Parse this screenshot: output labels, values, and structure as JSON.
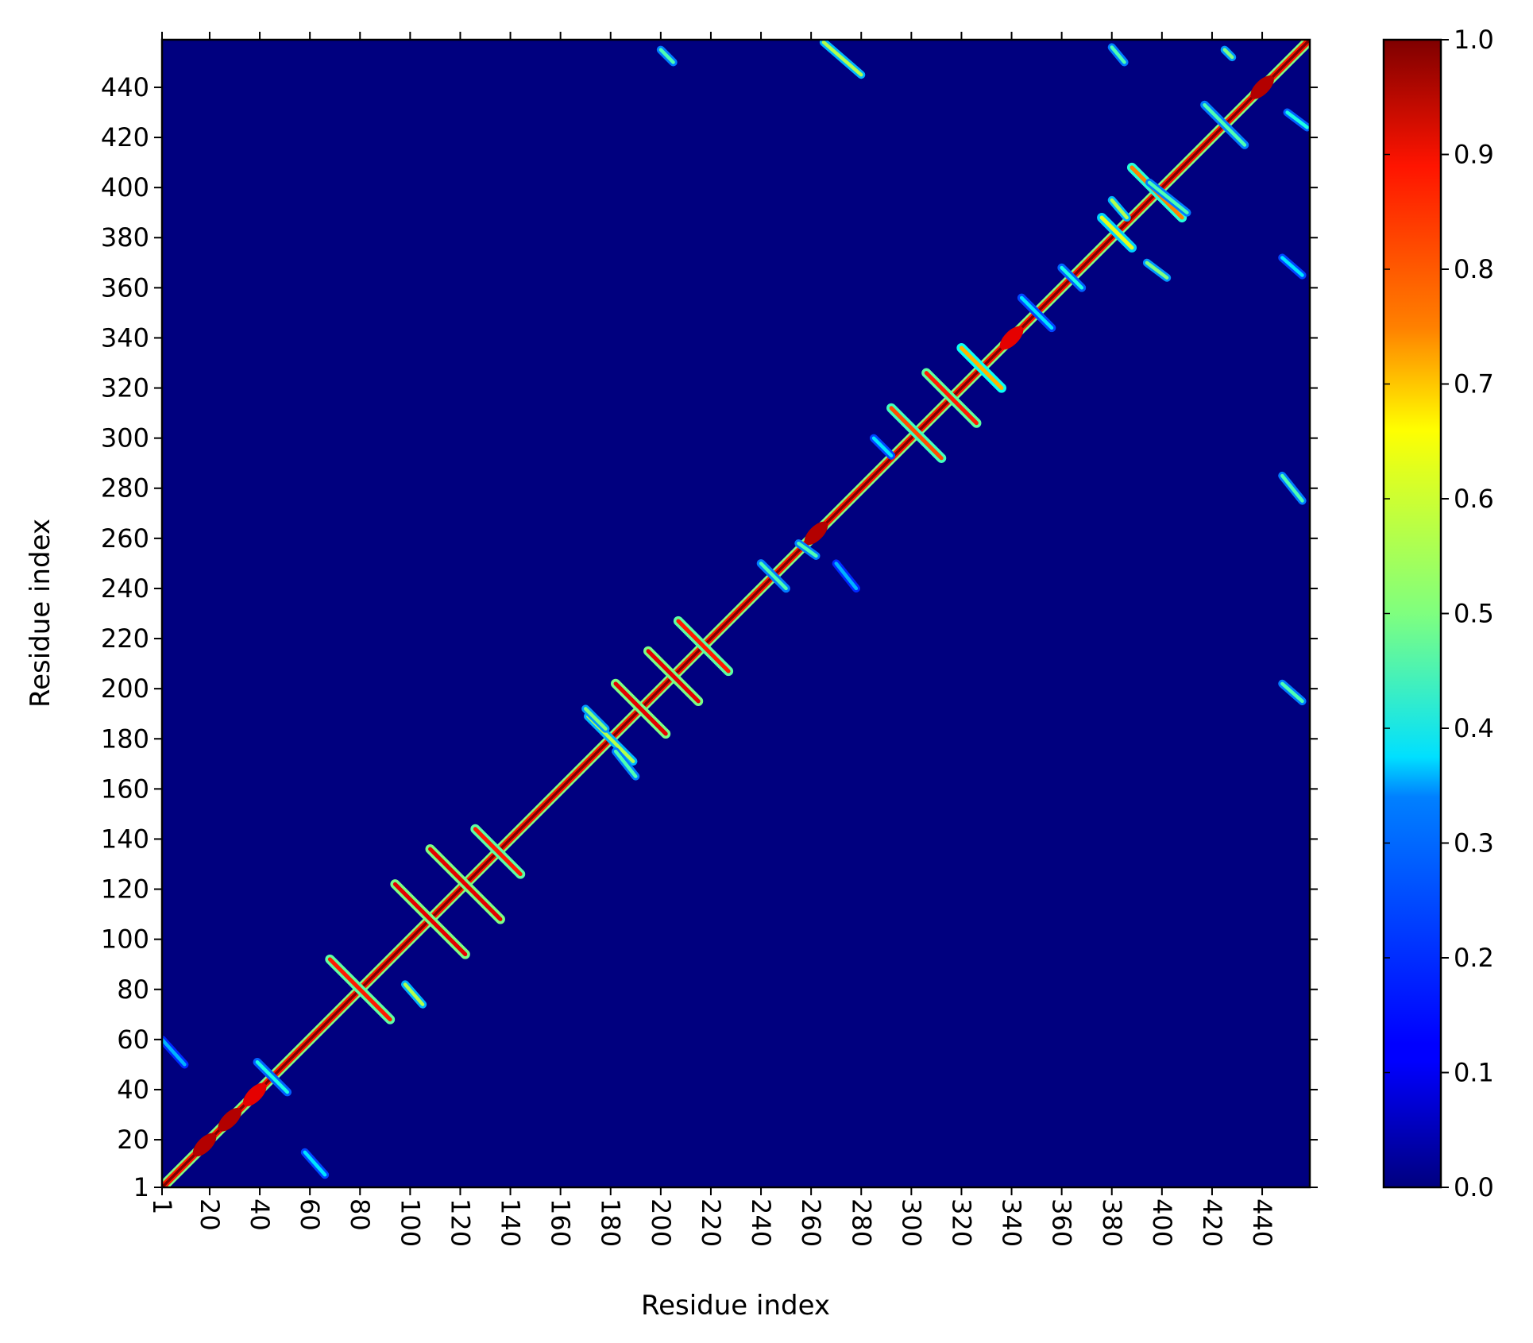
{
  "chart_data": {
    "type": "heatmap",
    "title": "",
    "xlabel": "Residue index",
    "ylabel": "Residue index",
    "xlim": [
      1,
      459
    ],
    "ylim": [
      1,
      459
    ],
    "x_ticks": [
      "1",
      "20",
      "40",
      "60",
      "80",
      "100",
      "120",
      "140",
      "160",
      "180",
      "200",
      "220",
      "240",
      "260",
      "280",
      "300",
      "320",
      "340",
      "360",
      "380",
      "400",
      "420",
      "440"
    ],
    "y_ticks": [
      "1",
      "20",
      "40",
      "60",
      "80",
      "100",
      "120",
      "140",
      "160",
      "180",
      "200",
      "220",
      "240",
      "260",
      "280",
      "300",
      "320",
      "340",
      "360",
      "380",
      "400",
      "420",
      "440"
    ],
    "x_tick_values": [
      1,
      20,
      40,
      60,
      80,
      100,
      120,
      140,
      160,
      180,
      200,
      220,
      240,
      260,
      280,
      300,
      320,
      340,
      360,
      380,
      400,
      420,
      440
    ],
    "y_tick_values": [
      1,
      20,
      40,
      60,
      80,
      100,
      120,
      140,
      160,
      180,
      200,
      220,
      240,
      260,
      280,
      300,
      320,
      340,
      360,
      380,
      400,
      420,
      440
    ],
    "colormap": "jet",
    "colorbar": {
      "range": [
        0.0,
        1.0
      ],
      "ticks": [
        "0.0",
        "0.1",
        "0.2",
        "0.3",
        "0.4",
        "0.5",
        "0.6",
        "0.7",
        "0.8",
        "0.9",
        "1.0"
      ],
      "tick_values": [
        0.0,
        0.1,
        0.2,
        0.3,
        0.4,
        0.5,
        0.6,
        0.7,
        0.8,
        0.9,
        1.0
      ]
    },
    "diagonal_value": 1.0,
    "background_value": 0.03,
    "features": [
      {
        "kind": "diagonal-band",
        "from": 1,
        "to": 459,
        "value": 1.0
      },
      {
        "kind": "helix-blob",
        "center": [
          18,
          18
        ],
        "value": 0.95
      },
      {
        "kind": "helix-blob",
        "center": [
          28,
          28
        ],
        "value": 0.95
      },
      {
        "kind": "helix-blob",
        "center": [
          38,
          38
        ],
        "value": 0.9
      },
      {
        "kind": "helix-blob",
        "center": [
          262,
          262
        ],
        "value": 0.95
      },
      {
        "kind": "helix-blob",
        "center": [
          340,
          340
        ],
        "value": 0.9
      },
      {
        "kind": "helix-blob",
        "center": [
          440,
          440
        ],
        "value": 0.95
      },
      {
        "kind": "strand-cross",
        "center": [
          80,
          80
        ],
        "length": 12,
        "value": 0.85
      },
      {
        "kind": "strand-cross",
        "center": [
          108,
          108
        ],
        "length": 14,
        "value": 0.9
      },
      {
        "kind": "strand-cross",
        "center": [
          122,
          122
        ],
        "length": 14,
        "value": 0.9
      },
      {
        "kind": "strand-cross",
        "center": [
          135,
          135
        ],
        "length": 9,
        "value": 0.85
      },
      {
        "kind": "strand-cross",
        "center": [
          192,
          192
        ],
        "length": 10,
        "value": 0.9
      },
      {
        "kind": "strand-cross",
        "center": [
          205,
          205
        ],
        "length": 10,
        "value": 0.9
      },
      {
        "kind": "strand-cross",
        "center": [
          217,
          217
        ],
        "length": 10,
        "value": 0.85
      },
      {
        "kind": "strand-cross",
        "center": [
          302,
          302
        ],
        "length": 10,
        "value": 0.8
      },
      {
        "kind": "strand-cross",
        "center": [
          316,
          316
        ],
        "length": 10,
        "value": 0.85
      },
      {
        "kind": "strand-cross",
        "center": [
          328,
          328
        ],
        "length": 8,
        "value": 0.7
      },
      {
        "kind": "strand-cross",
        "center": [
          398,
          398
        ],
        "length": 10,
        "value": 0.75
      },
      {
        "kind": "strand-cross",
        "center": [
          382,
          382
        ],
        "length": 6,
        "value": 0.6
      },
      {
        "kind": "weak-cross",
        "center": [
          45,
          45
        ],
        "length": 6,
        "value": 0.4
      },
      {
        "kind": "weak-cross",
        "center": [
          180,
          180
        ],
        "length": 9,
        "value": 0.55
      },
      {
        "kind": "weak-cross",
        "center": [
          245,
          245
        ],
        "length": 5,
        "value": 0.45
      },
      {
        "kind": "weak-cross",
        "center": [
          350,
          350
        ],
        "length": 6,
        "value": 0.35
      },
      {
        "kind": "weak-cross",
        "center": [
          364,
          364
        ],
        "length": 4,
        "value": 0.4
      },
      {
        "kind": "weak-cross",
        "center": [
          425,
          425
        ],
        "length": 8,
        "value": 0.45
      },
      {
        "kind": "contact-streak",
        "from": [
          200,
          455
        ],
        "to": [
          205,
          450
        ],
        "value": 0.45
      },
      {
        "kind": "contact-streak",
        "from": [
          265,
          458
        ],
        "to": [
          280,
          445
        ],
        "value": 0.55
      },
      {
        "kind": "contact-streak",
        "from": [
          380,
          456
        ],
        "to": [
          385,
          450
        ],
        "value": 0.45
      },
      {
        "kind": "contact-streak",
        "from": [
          425,
          455
        ],
        "to": [
          428,
          452
        ],
        "value": 0.5
      },
      {
        "kind": "contact-streak",
        "from": [
          448,
          285
        ],
        "to": [
          456,
          275
        ],
        "value": 0.45
      },
      {
        "kind": "contact-streak",
        "from": [
          448,
          202
        ],
        "to": [
          456,
          195
        ],
        "value": 0.45
      },
      {
        "kind": "contact-streak",
        "from": [
          450,
          430
        ],
        "to": [
          458,
          424
        ],
        "value": 0.4
      },
      {
        "kind": "contact-streak",
        "from": [
          448,
          372
        ],
        "to": [
          456,
          365
        ],
        "value": 0.35
      },
      {
        "kind": "contact-streak",
        "from": [
          170,
          192
        ],
        "to": [
          178,
          184
        ],
        "value": 0.5
      },
      {
        "kind": "contact-streak",
        "from": [
          182,
          175
        ],
        "to": [
          190,
          165
        ],
        "value": 0.45
      },
      {
        "kind": "contact-streak",
        "from": [
          98,
          82
        ],
        "to": [
          105,
          74
        ],
        "value": 0.55
      },
      {
        "kind": "contact-streak",
        "from": [
          380,
          395
        ],
        "to": [
          386,
          388
        ],
        "value": 0.55
      },
      {
        "kind": "contact-streak",
        "from": [
          394,
          370
        ],
        "to": [
          402,
          364
        ],
        "value": 0.5
      },
      {
        "kind": "contact-streak",
        "from": [
          255,
          258
        ],
        "to": [
          262,
          253
        ],
        "value": 0.45
      },
      {
        "kind": "contact-streak",
        "from": [
          285,
          300
        ],
        "to": [
          292,
          293
        ],
        "value": 0.35
      },
      {
        "kind": "contact-streak",
        "from": [
          395,
          402
        ],
        "to": [
          410,
          390
        ],
        "value": 0.45
      },
      {
        "kind": "contact-streak",
        "from": [
          270,
          250
        ],
        "to": [
          278,
          240
        ],
        "value": 0.3
      },
      {
        "kind": "contact-streak",
        "from": [
          58,
          15
        ],
        "to": [
          66,
          6
        ],
        "value": 0.35
      },
      {
        "kind": "contact-streak",
        "from": [
          1,
          60
        ],
        "to": [
          10,
          50
        ],
        "value": 0.3
      }
    ]
  }
}
